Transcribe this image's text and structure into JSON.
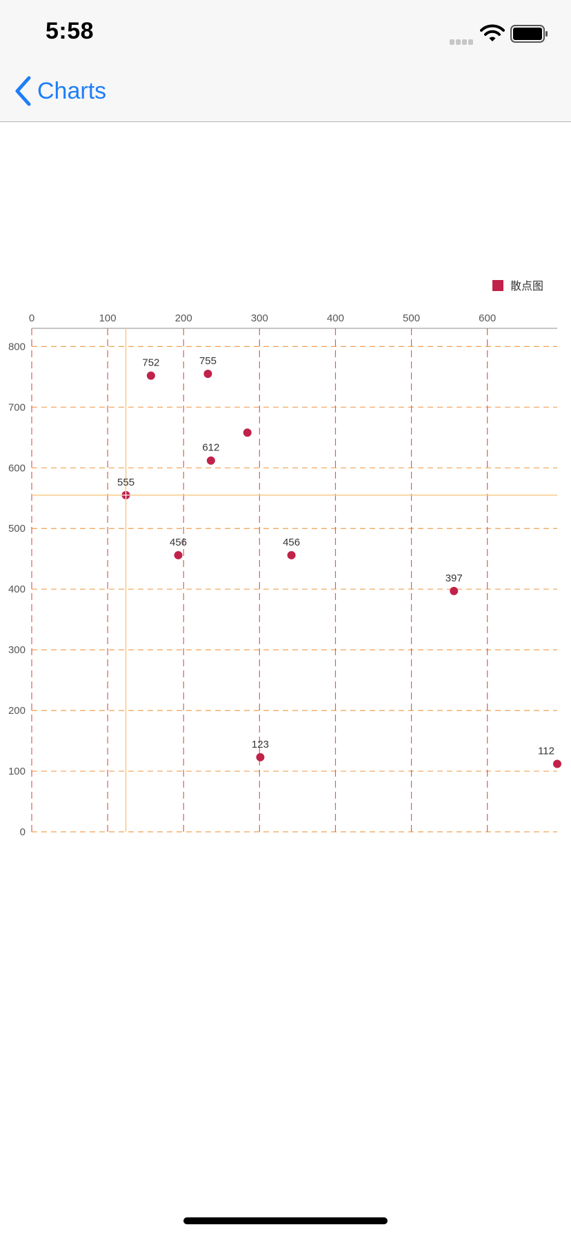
{
  "status_bar": {
    "time": "5:58"
  },
  "nav": {
    "back_label": "Charts"
  },
  "colors": {
    "accent": "#1f7ef6",
    "point": "#c0224a",
    "v_grid": "#e05a5a",
    "h_grid": "#f0a050",
    "highlight": "#f7c98a"
  },
  "chart_data": {
    "type": "scatter",
    "legend": {
      "label": "散点图",
      "position": "top-right"
    },
    "x_axis": {
      "position": "top",
      "ticks": [
        0,
        100,
        200,
        300,
        400,
        500,
        600
      ],
      "range": [
        0,
        692
      ]
    },
    "y_axis": {
      "position": "left",
      "ticks": [
        0,
        100,
        200,
        300,
        400,
        500,
        600,
        700,
        800
      ],
      "range": [
        0,
        830
      ]
    },
    "grid": true,
    "series": [
      {
        "name": "散点图",
        "points": [
          {
            "x": 157,
            "y": 752,
            "label": "752"
          },
          {
            "x": 232,
            "y": 755,
            "label": "755"
          },
          {
            "x": 284,
            "y": 658,
            "label": ""
          },
          {
            "x": 236,
            "y": 612,
            "label": "612"
          },
          {
            "x": 124,
            "y": 555,
            "label": "555",
            "highlighted": true
          },
          {
            "x": 193,
            "y": 456,
            "label": "456"
          },
          {
            "x": 342,
            "y": 456,
            "label": "456"
          },
          {
            "x": 556,
            "y": 397,
            "label": "397"
          },
          {
            "x": 301,
            "y": 123,
            "label": "123"
          },
          {
            "x": 692,
            "y": 112,
            "label": "112"
          }
        ]
      }
    ]
  }
}
